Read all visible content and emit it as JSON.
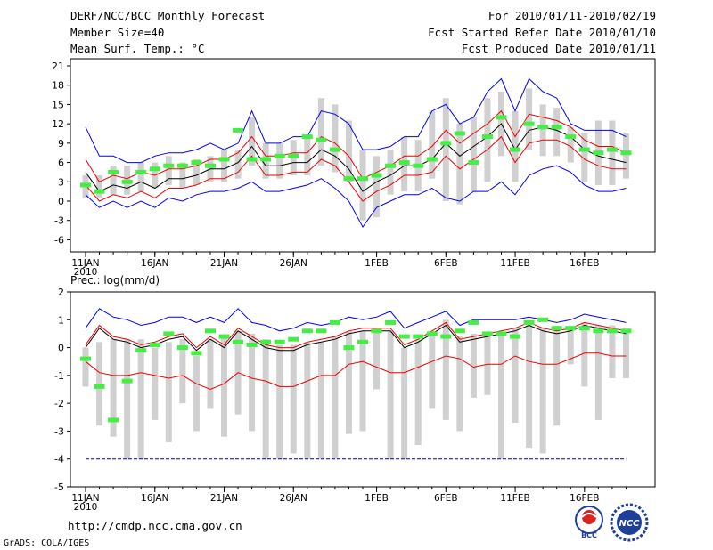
{
  "header": {
    "title": "DERF/NCC/BCC Monthly Forecast",
    "member_size": "Member Size=40",
    "variable": "Mean Surf. Temp.: °C",
    "period": "For 2010/01/11-2010/02/19",
    "started": "Fcst Started Refer Date 2010/01/10",
    "produced": "Fcst Produced Date 2010/01/11"
  },
  "footer": {
    "url": "http://cmdp.ncc.cma.gov.cn",
    "credit": "GrADS: COLA/IGES",
    "logo_left": "BCC",
    "logo_right": "NCC"
  },
  "colors": {
    "box": "#d0d0d0",
    "median": "#000000",
    "bound_outer": "#0000ee",
    "bound_inner": "#ee0000",
    "obs": "#44ee44",
    "dash": "#0000aa"
  },
  "chart_data": [
    {
      "type": "line",
      "title": "Mean Surf. Temp.: °C",
      "yticks": [
        "21",
        "18",
        "15",
        "12",
        "9",
        "6",
        "3",
        "0",
        "-3",
        "-6"
      ],
      "ylim": [
        -9,
        22
      ],
      "xticks": [
        "11JAN",
        "16JAN",
        "21JAN",
        "26JAN",
        "1FEB",
        "6FEB",
        "11FEB",
        "16FEB"
      ],
      "xtick_year": "2010",
      "x": [
        1,
        2,
        3,
        4,
        5,
        6,
        7,
        8,
        9,
        10,
        11,
        12,
        13,
        14,
        15,
        16,
        17,
        18,
        19,
        20,
        21,
        22,
        23,
        24,
        25,
        26,
        27,
        28,
        29,
        30,
        31,
        32,
        33,
        34,
        35,
        36,
        37,
        38,
        39,
        40
      ],
      "median": [
        4.5,
        1.5,
        2.5,
        2.0,
        3.0,
        2.0,
        3.5,
        3.5,
        4.0,
        5.0,
        5.0,
        6.0,
        8.5,
        5.5,
        5.5,
        6.0,
        6.0,
        8.0,
        7.0,
        5.0,
        1.5,
        3.0,
        4.0,
        5.5,
        5.5,
        6.5,
        9.0,
        7.0,
        8.5,
        10.0,
        12.0,
        8.0,
        11.0,
        11.5,
        11.0,
        10.0,
        8.0,
        7.0,
        6.5,
        6.0
      ],
      "blue_upper": [
        11.5,
        7.0,
        7.0,
        6.0,
        6.0,
        7.0,
        7.5,
        7.5,
        8.0,
        9.0,
        8.0,
        9.0,
        14.0,
        9.0,
        9.0,
        10.0,
        10.0,
        14.0,
        13.5,
        12.0,
        8.0,
        8.0,
        8.5,
        10.0,
        10.0,
        14.0,
        15.0,
        12.0,
        13.0,
        17.0,
        19.0,
        14.0,
        19.0,
        17.0,
        16.0,
        12.0,
        11.0,
        11.0,
        11.0,
        10.0
      ],
      "blue_lower": [
        1.0,
        -1.0,
        0.0,
        -1.0,
        0.0,
        -1.0,
        0.5,
        0.0,
        1.0,
        1.5,
        1.5,
        2.0,
        3.0,
        1.5,
        1.5,
        2.0,
        2.5,
        3.5,
        2.0,
        0.0,
        -4.0,
        -1.0,
        0.0,
        1.0,
        1.0,
        2.0,
        0.5,
        0.0,
        1.5,
        1.5,
        3.0,
        1.0,
        4.0,
        5.0,
        5.5,
        4.5,
        2.5,
        1.5,
        1.5,
        2.0
      ],
      "red_upper": [
        6.5,
        3.0,
        4.0,
        3.5,
        4.5,
        4.0,
        5.0,
        5.0,
        5.5,
        6.5,
        6.5,
        7.5,
        10.0,
        7.0,
        7.0,
        7.5,
        7.5,
        10.0,
        9.0,
        7.0,
        3.5,
        4.5,
        5.5,
        7.0,
        7.0,
        8.5,
        11.0,
        9.0,
        10.5,
        12.0,
        14.0,
        10.0,
        13.5,
        13.0,
        12.5,
        11.5,
        9.5,
        8.5,
        8.5,
        7.5
      ],
      "red_lower": [
        2.5,
        0.0,
        1.0,
        0.5,
        1.5,
        0.5,
        2.0,
        2.0,
        2.5,
        3.5,
        3.5,
        4.5,
        7.0,
        4.0,
        4.0,
        4.5,
        4.5,
        6.5,
        5.5,
        3.0,
        0.0,
        1.5,
        2.5,
        4.0,
        4.0,
        4.5,
        7.0,
        5.0,
        6.5,
        8.0,
        10.0,
        6.0,
        9.0,
        9.5,
        9.5,
        8.5,
        6.5,
        5.5,
        5.0,
        5.0
      ],
      "box_upper": [
        4.0,
        4.0,
        5.5,
        5.5,
        6.0,
        6.0,
        7.0,
        6.0,
        6.5,
        7.0,
        8.0,
        8.0,
        13.0,
        9.0,
        9.0,
        9.5,
        10.0,
        16.0,
        15.0,
        12.5,
        8.0,
        7.0,
        8.0,
        10.0,
        9.5,
        14.0,
        16.0,
        12.0,
        13.0,
        16.0,
        17.0,
        14.0,
        17.5,
        15.0,
        14.5,
        11.5,
        10.5,
        12.5,
        12.5,
        10.5
      ],
      "box_lower": [
        0.5,
        0.5,
        1.0,
        1.0,
        1.5,
        2.0,
        2.5,
        2.0,
        2.5,
        3.0,
        3.0,
        3.5,
        5.5,
        3.5,
        3.5,
        4.0,
        4.0,
        5.5,
        4.5,
        3.0,
        -3.0,
        -2.5,
        1.0,
        1.5,
        1.5,
        3.5,
        0.0,
        -0.5,
        1.5,
        3.0,
        7.0,
        3.0,
        8.0,
        7.0,
        7.0,
        6.0,
        3.0,
        2.5,
        2.5,
        3.5
      ],
      "observed": [
        2.5,
        1.5,
        4.5,
        3.0,
        4.5,
        5.0,
        5.5,
        5.5,
        6.0,
        5.5,
        6.5,
        11.0,
        6.5,
        6.5,
        7.0,
        7.0,
        10.0,
        9.5,
        8.0,
        3.5,
        3.5,
        4.0,
        5.5,
        6.0,
        5.5,
        6.5,
        9.0,
        10.5,
        6.0,
        10.0,
        13.0,
        8.0,
        12.0,
        11.5,
        11.5,
        10.0,
        8.0,
        7.5,
        8.0,
        7.5
      ]
    },
    {
      "type": "line",
      "title": "Prec.: log(mm/d)",
      "yticks": [
        "2",
        "1",
        "0",
        "-1",
        "-2",
        "-3",
        "-4",
        "-5"
      ],
      "ylim": [
        -5,
        2
      ],
      "xticks": [
        "11JAN",
        "16JAN",
        "21JAN",
        "26JAN",
        "1FEB",
        "6FEB",
        "11FEB",
        "16FEB"
      ],
      "xtick_year": "2010",
      "x": [
        1,
        2,
        3,
        4,
        5,
        6,
        7,
        8,
        9,
        10,
        11,
        12,
        13,
        14,
        15,
        16,
        17,
        18,
        19,
        20,
        21,
        22,
        23,
        24,
        25,
        26,
        27,
        28,
        29,
        30,
        31,
        32,
        33,
        34,
        35,
        36,
        37,
        38,
        39,
        40
      ],
      "median": [
        0.0,
        0.7,
        0.3,
        0.2,
        0.0,
        0.1,
        0.3,
        0.4,
        -0.1,
        0.3,
        0.0,
        0.6,
        0.3,
        0.0,
        -0.1,
        -0.1,
        0.1,
        0.2,
        0.3,
        0.5,
        0.6,
        0.6,
        0.6,
        0.0,
        0.2,
        0.5,
        0.8,
        0.2,
        0.3,
        0.4,
        0.5,
        0.6,
        0.8,
        0.6,
        0.5,
        0.6,
        0.8,
        0.7,
        0.6,
        0.5
      ],
      "blue_upper": [
        0.7,
        1.4,
        1.1,
        1.0,
        0.8,
        0.9,
        1.1,
        1.1,
        0.9,
        1.1,
        0.9,
        1.4,
        0.9,
        0.8,
        0.6,
        0.7,
        0.9,
        0.8,
        0.9,
        1.1,
        1.0,
        1.1,
        1.3,
        0.7,
        0.9,
        1.1,
        1.3,
        0.8,
        1.0,
        1.0,
        1.0,
        1.0,
        1.1,
        1.0,
        0.9,
        1.0,
        1.2,
        1.1,
        1.0,
        0.9
      ],
      "blue_lower": [
        -4,
        -4,
        -4,
        -4,
        -4,
        -4,
        -4,
        -4,
        -4,
        -4,
        -4,
        -4,
        -4,
        -4,
        -4,
        -4,
        -4,
        -4,
        -4,
        -4,
        -4,
        -4,
        -4,
        -4,
        -4,
        -4,
        -4,
        -4,
        -4,
        -4,
        -4,
        -4,
        -4,
        -4,
        -4,
        -4,
        -4,
        -4,
        -4,
        -4
      ],
      "red_upper": [
        0.1,
        0.8,
        0.4,
        0.3,
        0.1,
        0.2,
        0.4,
        0.5,
        0.0,
        0.4,
        0.1,
        0.7,
        0.4,
        0.1,
        0.0,
        0.0,
        0.2,
        0.3,
        0.4,
        0.6,
        0.7,
        0.7,
        0.7,
        0.1,
        0.3,
        0.6,
        0.9,
        0.3,
        0.4,
        0.5,
        0.6,
        0.7,
        0.9,
        0.7,
        0.6,
        0.7,
        0.9,
        0.8,
        0.7,
        0.6
      ],
      "red_lower": [
        -0.5,
        -0.9,
        -1.0,
        -1.0,
        -0.9,
        -1.0,
        -1.1,
        -1.0,
        -1.3,
        -1.5,
        -1.3,
        -0.9,
        -1.1,
        -1.2,
        -1.4,
        -1.4,
        -1.2,
        -1.0,
        -1.0,
        -0.6,
        -0.5,
        -0.7,
        -0.9,
        -0.9,
        -0.7,
        -0.5,
        -0.3,
        -0.4,
        -0.7,
        -0.6,
        -0.6,
        -0.3,
        -0.5,
        -0.6,
        -0.6,
        -0.4,
        -0.2,
        -0.2,
        -0.3,
        -0.3
      ],
      "box_upper": [
        0.0,
        0.2,
        0.3,
        0.3,
        0.3,
        0.0,
        0.2,
        0.3,
        -0.3,
        0.3,
        0.4,
        0.6,
        0.5,
        0.3,
        0.1,
        0.1,
        0.2,
        0.2,
        0.4,
        0.6,
        0.6,
        0.6,
        0.6,
        0.0,
        0.3,
        0.6,
        1.0,
        0.4,
        0.5,
        0.5,
        0.5,
        0.7,
        0.9,
        0.7,
        0.7,
        0.7,
        0.9,
        0.8,
        0.8,
        0.6
      ],
      "box_lower": [
        -1.4,
        -2.8,
        -3.2,
        -4.0,
        -4.0,
        -2.6,
        -3.4,
        -2.0,
        -3.0,
        -2.2,
        -3.2,
        -2.4,
        -3.0,
        -4.0,
        -4.0,
        -3.8,
        -4.0,
        -4.0,
        -4.0,
        -3.1,
        -3.0,
        -1.5,
        -4.0,
        -4.0,
        -3.5,
        -2.2,
        -2.6,
        -3.0,
        -1.8,
        -1.7,
        -4.0,
        -2.7,
        -3.6,
        -3.8,
        -2.8,
        -0.6,
        -1.4,
        -2.6,
        -1.1,
        -1.1
      ],
      "observed": [
        -0.4,
        -1.4,
        -2.6,
        -1.2,
        -0.1,
        0.1,
        0.5,
        0.0,
        -0.2,
        0.6,
        0.4,
        0.2,
        0.1,
        0.2,
        0.2,
        0.3,
        0.6,
        0.6,
        0.9,
        0.0,
        0.2,
        0.6,
        0.9,
        0.4,
        0.4,
        0.5,
        0.4,
        0.6,
        0.9,
        0.5,
        0.5,
        0.4,
        0.9,
        1.0,
        0.7,
        0.7,
        0.7,
        0.6,
        0.6,
        0.6
      ]
    }
  ]
}
